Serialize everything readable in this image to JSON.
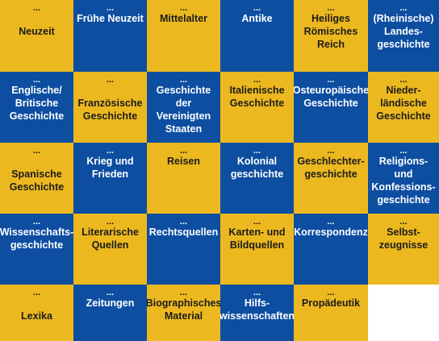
{
  "palette": {
    "yellow": "#ecb81f",
    "blue": "#0d4ea1"
  },
  "rows": [
    {
      "tiles": [
        {
          "dots": "...",
          "label": "\nNeuzeit",
          "color": "yellow"
        },
        {
          "dots": "...",
          "label": "Frühe Neuzeit",
          "color": "blue"
        },
        {
          "dots": "...",
          "label": "Mittelalter",
          "color": "yellow"
        },
        {
          "dots": "...",
          "label": "Antike",
          "color": "blue"
        },
        {
          "dots": "...",
          "label": "Heiliges\nRömisches\nReich",
          "color": "yellow"
        },
        {
          "dots": "...",
          "label": "(Rheinische)\nLandes-\ngeschichte",
          "color": "blue"
        }
      ]
    },
    {
      "tiles": [
        {
          "dots": "...",
          "label": "Englische/\nBritische\nGeschichte",
          "color": "blue"
        },
        {
          "dots": "...",
          "label": "\nFranzösische\nGeschichte",
          "color": "yellow"
        },
        {
          "dots": "...",
          "label": "Geschichte der\nVereinigten\nStaaten",
          "color": "blue"
        },
        {
          "dots": "...",
          "label": "Italienische\nGeschichte",
          "color": "yellow"
        },
        {
          "dots": "...",
          "label": "Osteuropäische\nGeschichte",
          "color": "blue"
        },
        {
          "dots": "...",
          "label": "Nieder-\nländische\nGeschichte",
          "color": "yellow"
        }
      ]
    },
    {
      "tiles": [
        {
          "dots": "...",
          "label": "\nSpanische\nGeschichte",
          "color": "yellow"
        },
        {
          "dots": "...",
          "label": "Krieg und\nFrieden",
          "color": "blue"
        },
        {
          "dots": "...",
          "label": "Reisen",
          "color": "yellow"
        },
        {
          "dots": "...",
          "label": "Kolonial\ngeschichte",
          "color": "blue"
        },
        {
          "dots": "...",
          "label": "Geschlechter-\ngeschichte",
          "color": "yellow"
        },
        {
          "dots": "...",
          "label": "Religions- und\nKonfessions-\ngeschichte",
          "color": "blue"
        }
      ]
    },
    {
      "tiles": [
        {
          "dots": "...",
          "label": "Wissenschafts-\ngeschichte",
          "color": "blue"
        },
        {
          "dots": "...",
          "label": "Literarische\nQuellen",
          "color": "yellow"
        },
        {
          "dots": "...",
          "label": "Rechtsquellen",
          "color": "blue"
        },
        {
          "dots": "...",
          "label": "Karten- und\nBildquellen",
          "color": "yellow"
        },
        {
          "dots": "...",
          "label": "Korrespondenz",
          "color": "blue"
        },
        {
          "dots": "...",
          "label": "Selbst-\nzeugnisse",
          "color": "yellow"
        }
      ]
    },
    {
      "tiles": [
        {
          "dots": "...",
          "label": "\nLexika",
          "color": "yellow"
        },
        {
          "dots": "...",
          "label": "Zeitungen",
          "color": "blue"
        },
        {
          "dots": "...",
          "label": "Biographisches\nMaterial",
          "color": "yellow"
        },
        {
          "dots": "...",
          "label": "Hilfs-\nwissenschaften",
          "color": "blue"
        },
        {
          "dots": "...",
          "label": "Propädeutik",
          "color": "yellow"
        }
      ]
    }
  ]
}
